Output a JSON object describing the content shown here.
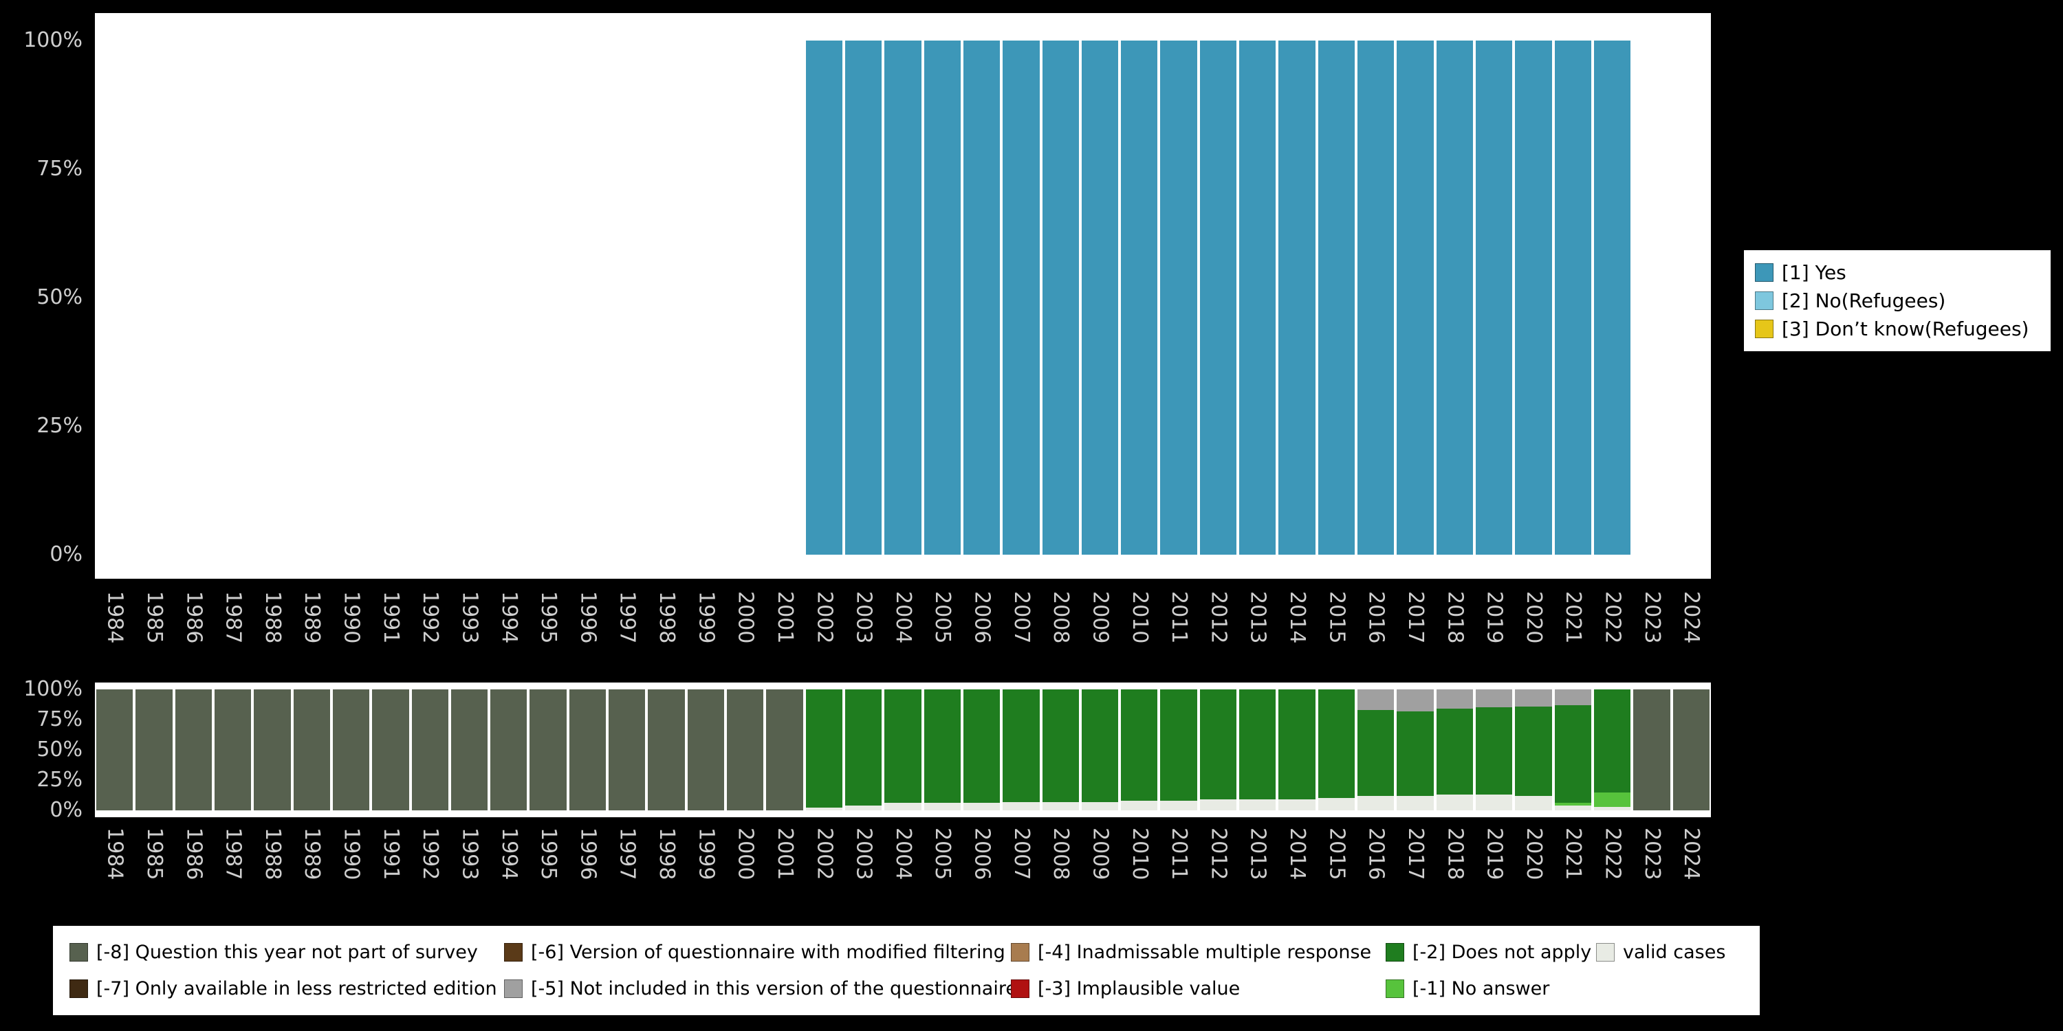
{
  "chart_data": [
    {
      "name": "substantive-values-chart",
      "type": "bar",
      "stacked": true,
      "ylim": [
        0,
        100
      ],
      "grid": false,
      "legend_position": "right",
      "yticks": [
        "100%",
        "75%",
        "50%",
        "25%",
        "0%"
      ],
      "categories": [
        "1984",
        "1985",
        "1986",
        "1987",
        "1988",
        "1989",
        "1990",
        "1991",
        "1992",
        "1993",
        "1994",
        "1995",
        "1996",
        "1997",
        "1998",
        "1999",
        "2000",
        "2001",
        "2002",
        "2003",
        "2004",
        "2005",
        "2006",
        "2007",
        "2008",
        "2009",
        "2010",
        "2011",
        "2012",
        "2013",
        "2014",
        "2015",
        "2016",
        "2017",
        "2018",
        "2019",
        "2020",
        "2021",
        "2022",
        "2023",
        "2024"
      ],
      "series": [
        {
          "name": "[1] Yes",
          "color": "#3d97b8",
          "values": [
            0,
            0,
            0,
            0,
            0,
            0,
            0,
            0,
            0,
            0,
            0,
            0,
            0,
            0,
            0,
            0,
            0,
            0,
            100,
            100,
            100,
            100,
            100,
            100,
            100,
            100,
            100,
            100,
            100,
            100,
            100,
            100,
            100,
            100,
            100,
            100,
            100,
            100,
            100,
            0,
            0
          ]
        }
      ],
      "legend": [
        {
          "label": "[1] Yes",
          "color": "#3d97b8"
        },
        {
          "label": "[2] No(Refugees)",
          "color": "#7ec7de"
        },
        {
          "label": "[3] Don’t know(Refugees)",
          "color": "#e6c619"
        }
      ]
    },
    {
      "name": "missing-values-chart",
      "type": "bar",
      "stacked": true,
      "ylim": [
        0,
        100
      ],
      "grid": false,
      "legend_position": "bottom",
      "yticks": [
        "100%",
        "75%",
        "50%",
        "25%",
        "0%"
      ],
      "categories": [
        "1984",
        "1985",
        "1986",
        "1987",
        "1988",
        "1989",
        "1990",
        "1991",
        "1992",
        "1993",
        "1994",
        "1995",
        "1996",
        "1997",
        "1998",
        "1999",
        "2000",
        "2001",
        "2002",
        "2003",
        "2004",
        "2005",
        "2006",
        "2007",
        "2008",
        "2009",
        "2010",
        "2011",
        "2012",
        "2013",
        "2014",
        "2015",
        "2016",
        "2017",
        "2018",
        "2019",
        "2020",
        "2021",
        "2022",
        "2023",
        "2024"
      ],
      "series": [
        {
          "name": "valid cases",
          "color": "#e8ebe4",
          "values": [
            0,
            0,
            0,
            0,
            0,
            0,
            0,
            0,
            0,
            0,
            0,
            0,
            0,
            0,
            0,
            0,
            0,
            0,
            2,
            4,
            6,
            6,
            6,
            7,
            7,
            7,
            8,
            8,
            9,
            9,
            9,
            10,
            12,
            12,
            13,
            13,
            12,
            4,
            3,
            0,
            0
          ]
        },
        {
          "name": "[-1] No answer",
          "color": "#57c33c",
          "values": [
            0,
            0,
            0,
            0,
            0,
            0,
            0,
            0,
            0,
            0,
            0,
            0,
            0,
            0,
            0,
            0,
            0,
            0,
            0,
            0,
            0,
            0,
            0,
            0,
            0,
            0,
            0,
            0,
            0,
            0,
            0,
            0,
            0,
            0,
            0,
            0,
            0,
            2,
            12,
            0,
            0
          ]
        },
        {
          "name": "[-2] Does not apply",
          "color": "#1f7d1f",
          "values": [
            0,
            0,
            0,
            0,
            0,
            0,
            0,
            0,
            0,
            0,
            0,
            0,
            0,
            0,
            0,
            0,
            0,
            0,
            98,
            96,
            94,
            94,
            94,
            93,
            93,
            93,
            92,
            92,
            91,
            91,
            91,
            90,
            71,
            70,
            71,
            72,
            74,
            81,
            85,
            0,
            0
          ]
        },
        {
          "name": "[-5] Not included in this version of the questionnaire",
          "color": "#a0a0a0",
          "values": [
            0,
            0,
            0,
            0,
            0,
            0,
            0,
            0,
            0,
            0,
            0,
            0,
            0,
            0,
            0,
            0,
            0,
            0,
            0,
            0,
            0,
            0,
            0,
            0,
            0,
            0,
            0,
            0,
            0,
            0,
            0,
            0,
            17,
            18,
            16,
            15,
            14,
            13,
            0,
            0,
            0
          ]
        },
        {
          "name": "[-8] Question this year not part of survey",
          "color": "#57614f",
          "values": [
            100,
            100,
            100,
            100,
            100,
            100,
            100,
            100,
            100,
            100,
            100,
            100,
            100,
            100,
            100,
            100,
            100,
            100,
            0,
            0,
            0,
            0,
            0,
            0,
            0,
            0,
            0,
            0,
            0,
            0,
            0,
            0,
            0,
            0,
            0,
            0,
            0,
            0,
            0,
            100,
            100
          ]
        }
      ],
      "legend": [
        {
          "label": "[-8] Question this year not part of survey",
          "color": "#57614f"
        },
        {
          "label": "[-7] Only available in less restricted edition",
          "color": "#3f2a13"
        },
        {
          "label": "[-6] Version of questionnaire with modified filtering",
          "color": "#5a3a18"
        },
        {
          "label": "[-5] Not included in this version of the questionnaire",
          "color": "#a0a0a0"
        },
        {
          "label": "[-4] Inadmissable multiple response",
          "color": "#a87c4f"
        },
        {
          "label": "[-3] Implausible value",
          "color": "#b01111"
        },
        {
          "label": "[-2] Does not apply",
          "color": "#1f7d1f"
        },
        {
          "label": "[-1] No answer",
          "color": "#57c33c"
        },
        {
          "label": "valid cases",
          "color": "#e8ebe4"
        }
      ]
    }
  ]
}
